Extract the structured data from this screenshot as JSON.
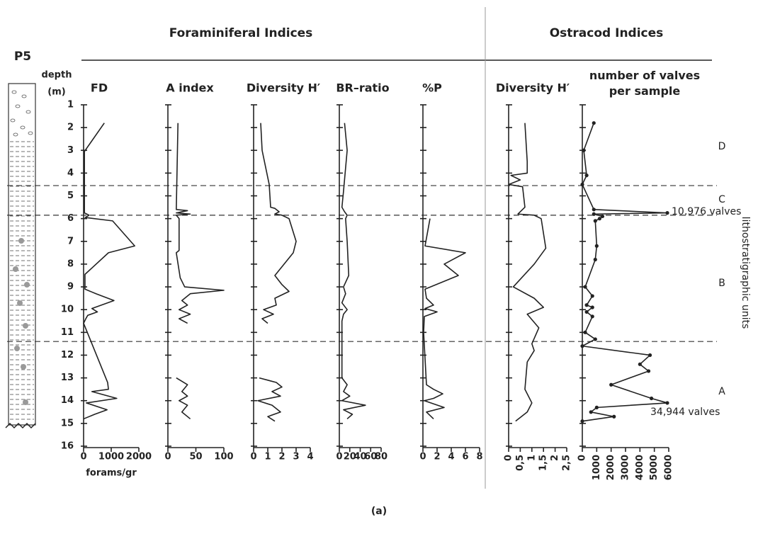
{
  "figure": {
    "panel_label": "P5",
    "depth_label": "depth",
    "depth_unit": "(m)",
    "groups": [
      "Foraminiferal Indices",
      "Ostracod Indices"
    ],
    "units_title": "lithostratigraphic units",
    "units": [
      "D",
      "C",
      "B",
      "A"
    ],
    "boundaries": [
      4.55,
      5.85,
      11.4
    ],
    "caption": "(a)"
  },
  "chart_data": [
    {
      "type": "line",
      "title": "FD",
      "xlabel": "forams/gr",
      "depth": [
        1.8,
        3.05,
        5.75,
        5.85,
        5.95,
        6.1,
        7.2,
        7.5,
        8.45,
        9.1,
        9.3,
        9.6,
        9.95,
        10.1,
        10.25,
        10.4,
        10.6,
        13.2,
        13.5,
        13.6,
        13.9,
        14.1,
        14.4,
        14.6,
        14.8
      ],
      "values": [
        750,
        30,
        30,
        200,
        60,
        1050,
        1850,
        900,
        50,
        50,
        450,
        1100,
        300,
        500,
        150,
        80,
        0,
        870,
        900,
        300,
        1200,
        100,
        850,
        400,
        0
      ],
      "xlim": [
        0,
        2000
      ],
      "xticks": [
        0,
        1000,
        2000
      ],
      "ylim": [
        1,
        16
      ],
      "yticks": [
        1,
        2,
        3,
        4,
        5,
        6,
        7,
        8,
        9,
        10,
        11,
        12,
        13,
        14,
        15,
        16
      ]
    },
    {
      "type": "line",
      "title": "A index",
      "depth": [
        1.8,
        5.6,
        5.65,
        5.75,
        5.8,
        5.85,
        6.0,
        7.4,
        7.5,
        8.6,
        9.0,
        9.15,
        9.3,
        9.6,
        9.8,
        10.0,
        10.2,
        10.4,
        10.6,
        null,
        13.0,
        13.3,
        13.6,
        13.8,
        14.0,
        14.2,
        14.5,
        14.8
      ],
      "values": [
        18,
        15,
        35,
        15,
        40,
        15,
        20,
        20,
        15,
        22,
        30,
        100,
        40,
        25,
        35,
        20,
        40,
        20,
        35,
        null,
        15,
        35,
        25,
        35,
        20,
        35,
        25,
        40
      ],
      "xlim": [
        0,
        100
      ],
      "xticks": [
        0,
        50,
        100
      ]
    },
    {
      "type": "line",
      "title": "Diversity H′",
      "depth": [
        1.8,
        3.0,
        4.5,
        5.5,
        5.55,
        5.7,
        5.8,
        5.85,
        6.0,
        7.0,
        7.5,
        8.5,
        8.9,
        9.2,
        9.5,
        9.8,
        10.0,
        10.2,
        10.4,
        10.6,
        null,
        13.0,
        13.2,
        13.4,
        13.6,
        13.8,
        14.0,
        14.2,
        14.5,
        14.7,
        14.9
      ],
      "values": [
        0.5,
        0.6,
        1.1,
        1.2,
        1.5,
        1.8,
        1.5,
        2.0,
        2.5,
        3.0,
        2.8,
        1.5,
        2.0,
        2.5,
        1.5,
        1.6,
        0.7,
        1.4,
        0.6,
        1.0,
        null,
        0.4,
        1.6,
        2.0,
        1.3,
        1.9,
        0.3,
        1.3,
        1.9,
        1.0,
        1.5
      ],
      "xlim": [
        0,
        4
      ],
      "xticks": [
        0,
        1,
        2,
        3,
        4
      ]
    },
    {
      "type": "line",
      "title": "BR–ratio",
      "depth": [
        1.8,
        3.0,
        4.8,
        5.5,
        5.7,
        5.85,
        6.0,
        7.0,
        8.5,
        9.0,
        9.3,
        9.7,
        10.0,
        10.2,
        10.5,
        11.0,
        13.0,
        13.3,
        13.6,
        13.8,
        14.0,
        14.2,
        14.4,
        14.6,
        14.8
      ],
      "values": [
        10,
        15,
        8,
        5,
        10,
        15,
        12,
        15,
        18,
        8,
        12,
        5,
        15,
        8,
        5,
        5,
        5,
        15,
        8,
        20,
        5,
        50,
        8,
        25,
        15
      ],
      "xlim": [
        0,
        80
      ],
      "xticks": [
        0,
        20,
        40,
        60,
        80
      ]
    },
    {
      "type": "line",
      "title": "%P",
      "depth": [
        6.0,
        7.2,
        7.5,
        8.0,
        8.5,
        9.1,
        9.5,
        9.8,
        9.95,
        10.1,
        10.3,
        11.0,
        13.3,
        13.5,
        13.7,
        13.9,
        14.0,
        14.3,
        14.5,
        14.8
      ],
      "values": [
        1.0,
        0.3,
        6,
        3,
        5,
        0.3,
        0.5,
        1.5,
        0.3,
        2.0,
        0.2,
        0.1,
        0.5,
        1.5,
        2.8,
        1.5,
        0.2,
        3,
        0.5,
        1.5
      ],
      "xlim": [
        0,
        8
      ],
      "xticks": [
        0,
        2,
        4,
        6,
        8
      ]
    },
    {
      "type": "line",
      "title": "Diversity H′",
      "depth": [
        1.8,
        3.5,
        4.0,
        4.1,
        4.3,
        4.5,
        4.6,
        5.5,
        5.8,
        5.85,
        6.0,
        7.3,
        8.0,
        9.0,
        9.5,
        9.9,
        10.2,
        10.8,
        11.5,
        11.8,
        12.3,
        13.5,
        14.1,
        14.5,
        14.9
      ],
      "values": [
        0.7,
        0.8,
        0.8,
        0.1,
        0.5,
        0,
        0.6,
        0.7,
        0.4,
        1.1,
        1.4,
        1.6,
        1.1,
        0.2,
        1.1,
        1.5,
        0.8,
        1.3,
        1.0,
        1.1,
        0.8,
        0.7,
        1.0,
        0.8,
        0.3
      ],
      "xlim": [
        0,
        2.5
      ],
      "xticks": [
        0,
        {
          "value": 0.5,
          "label": "0,5"
        },
        1,
        {
          "value": 1.5,
          "label": "1,5"
        },
        2,
        {
          "value": 2.5,
          "label": "2,5"
        }
      ]
    },
    {
      "type": "line",
      "title": "number of valves per sample",
      "markers": true,
      "annotations": [
        "10,976 valves",
        "34,944 valves"
      ],
      "depth": [
        1.8,
        3.0,
        4.1,
        4.5,
        5.6,
        5.75,
        5.8,
        5.9,
        6.0,
        6.1,
        7.2,
        7.8,
        9.0,
        9.4,
        9.8,
        9.9,
        10.1,
        10.3,
        11.0,
        11.3,
        11.6,
        12.0,
        12.4,
        12.7,
        13.3,
        13.9,
        14.1,
        14.3,
        14.5,
        14.7,
        14.9
      ],
      "values": [
        800,
        100,
        300,
        0,
        800,
        5900,
        800,
        1400,
        1200,
        900,
        1000,
        900,
        200,
        700,
        300,
        700,
        300,
        700,
        200,
        900,
        0,
        4700,
        4000,
        4600,
        2000,
        4800,
        5900,
        1000,
        600,
        2200,
        0
      ],
      "xlim": [
        0,
        6000
      ],
      "xticks": [
        0,
        1000,
        2000,
        3000,
        4000,
        5000,
        6000
      ]
    }
  ]
}
